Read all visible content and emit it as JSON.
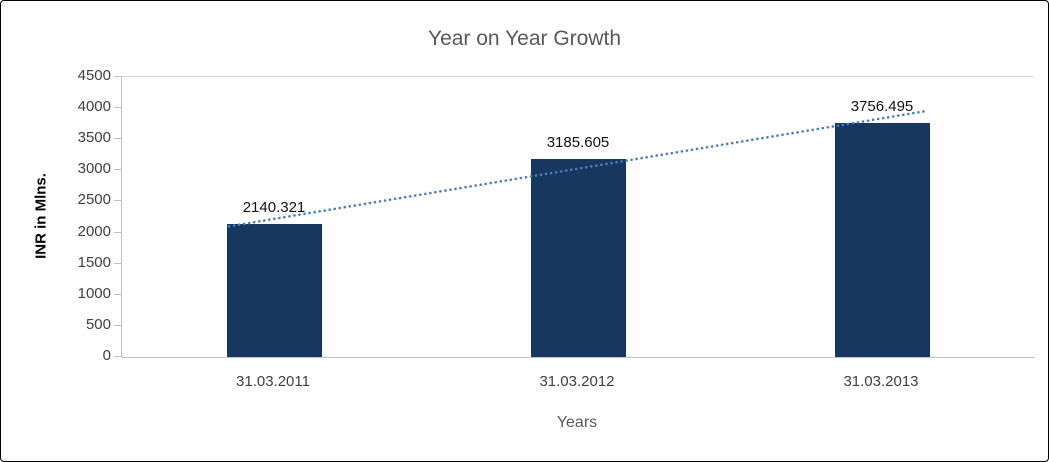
{
  "chart_data": {
    "type": "bar",
    "title": "Year on Year Growth",
    "xlabel": "Years",
    "ylabel": "INR in Mlns.",
    "categories": [
      "31.03.2011",
      "31.03.2012",
      "31.03.2013"
    ],
    "values": [
      2140.321,
      3185.605,
      3756.495
    ],
    "value_labels": [
      "2140.321",
      "3185.605",
      "3756.495"
    ],
    "ylim": [
      0,
      4500
    ],
    "yticks": [
      0,
      500,
      1000,
      1500,
      2000,
      2500,
      3000,
      3500,
      4000,
      4500
    ],
    "grid": false,
    "legend": "none",
    "trendline": true,
    "bar_color": "#17375e",
    "trendline_color": "#4a7ebb"
  }
}
